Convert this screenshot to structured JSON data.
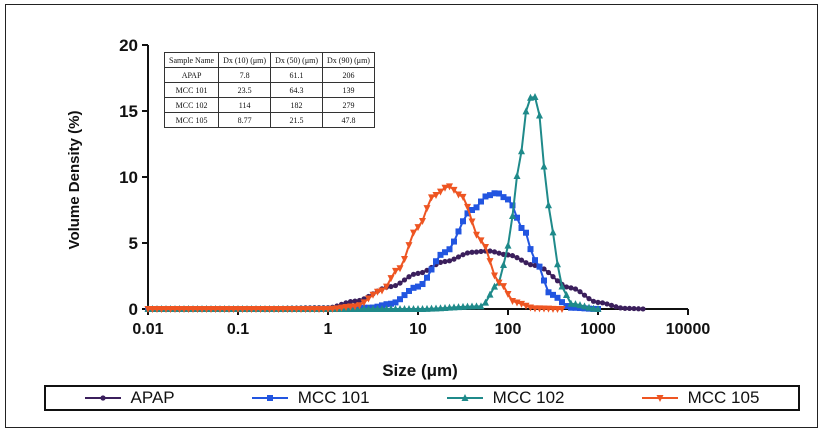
{
  "chart_data": {
    "type": "line",
    "xscale": "log",
    "xlim": [
      0.01,
      10000
    ],
    "ylim": [
      0,
      20
    ],
    "xlabel": "Size (μm)",
    "ylabel": "Volume Density (%)",
    "xticks": [
      {
        "value": 0.01,
        "label": "0.01"
      },
      {
        "value": 0.1,
        "label": "0.1"
      },
      {
        "value": 1,
        "label": "1"
      },
      {
        "value": 10,
        "label": "10"
      },
      {
        "value": 100,
        "label": "100"
      },
      {
        "value": 1000,
        "label": "1000"
      },
      {
        "value": 10000,
        "label": "10000"
      }
    ],
    "yticks": [
      0,
      5,
      10,
      15,
      20
    ],
    "grid": false,
    "legend_position": "bottom",
    "series": [
      {
        "name": "APAP",
        "color": "#3b1f5c",
        "marker": "circle",
        "x": [
          0.01,
          0.1,
          1,
          2,
          5,
          10,
          20,
          40,
          60,
          100,
          200,
          500,
          1000,
          2000,
          3500
        ],
        "y": [
          0,
          0,
          0.1,
          0.6,
          1.7,
          2.7,
          3.6,
          4.3,
          4.4,
          4.1,
          3.3,
          1.6,
          0.5,
          0.05,
          0
        ]
      },
      {
        "name": "MCC 101",
        "color": "#2255e0",
        "marker": "square",
        "x": [
          0.01,
          0.1,
          1,
          3,
          5,
          10,
          20,
          40,
          60,
          75,
          100,
          150,
          200,
          300,
          500,
          1000
        ],
        "y": [
          0,
          0,
          0,
          0.1,
          0.4,
          1.7,
          4.3,
          7.5,
          8.6,
          8.8,
          8.3,
          6.0,
          3.7,
          1.1,
          0.1,
          0
        ]
      },
      {
        "name": "MCC 102",
        "color": "#1f8a8a",
        "marker": "triangle-up",
        "x": [
          0.01,
          1,
          10,
          50,
          80,
          100,
          130,
          160,
          190,
          220,
          260,
          300,
          400,
          500,
          1000
        ],
        "y": [
          0,
          0,
          0,
          0.2,
          2.0,
          4.8,
          10.3,
          15.0,
          16.5,
          14.8,
          10.3,
          6.2,
          1.7,
          0.4,
          0
        ]
      },
      {
        "name": "MCC 105",
        "color": "#ee5522",
        "marker": "triangle-down",
        "x": [
          0.01,
          0.1,
          1,
          2,
          4,
          6,
          10,
          15,
          22,
          30,
          50,
          80,
          120,
          200,
          400
        ],
        "y": [
          0,
          0,
          0,
          0.2,
          1.4,
          3.0,
          6.2,
          8.6,
          9.3,
          8.6,
          5.2,
          2.0,
          0.5,
          0.05,
          0
        ]
      }
    ],
    "table": {
      "headers": [
        "Sample Name",
        "Dx (10) (μm)",
        "Dx (50) (μm)",
        "Dx (90) (μm)"
      ],
      "rows": [
        [
          "APAP",
          "7.8",
          "61.1",
          "206"
        ],
        [
          "MCC 101",
          "23.5",
          "64.3",
          "139"
        ],
        [
          "MCC 102",
          "114",
          "182",
          "279"
        ],
        [
          "MCC 105",
          "8.77",
          "21.5",
          "47.8"
        ]
      ]
    }
  }
}
